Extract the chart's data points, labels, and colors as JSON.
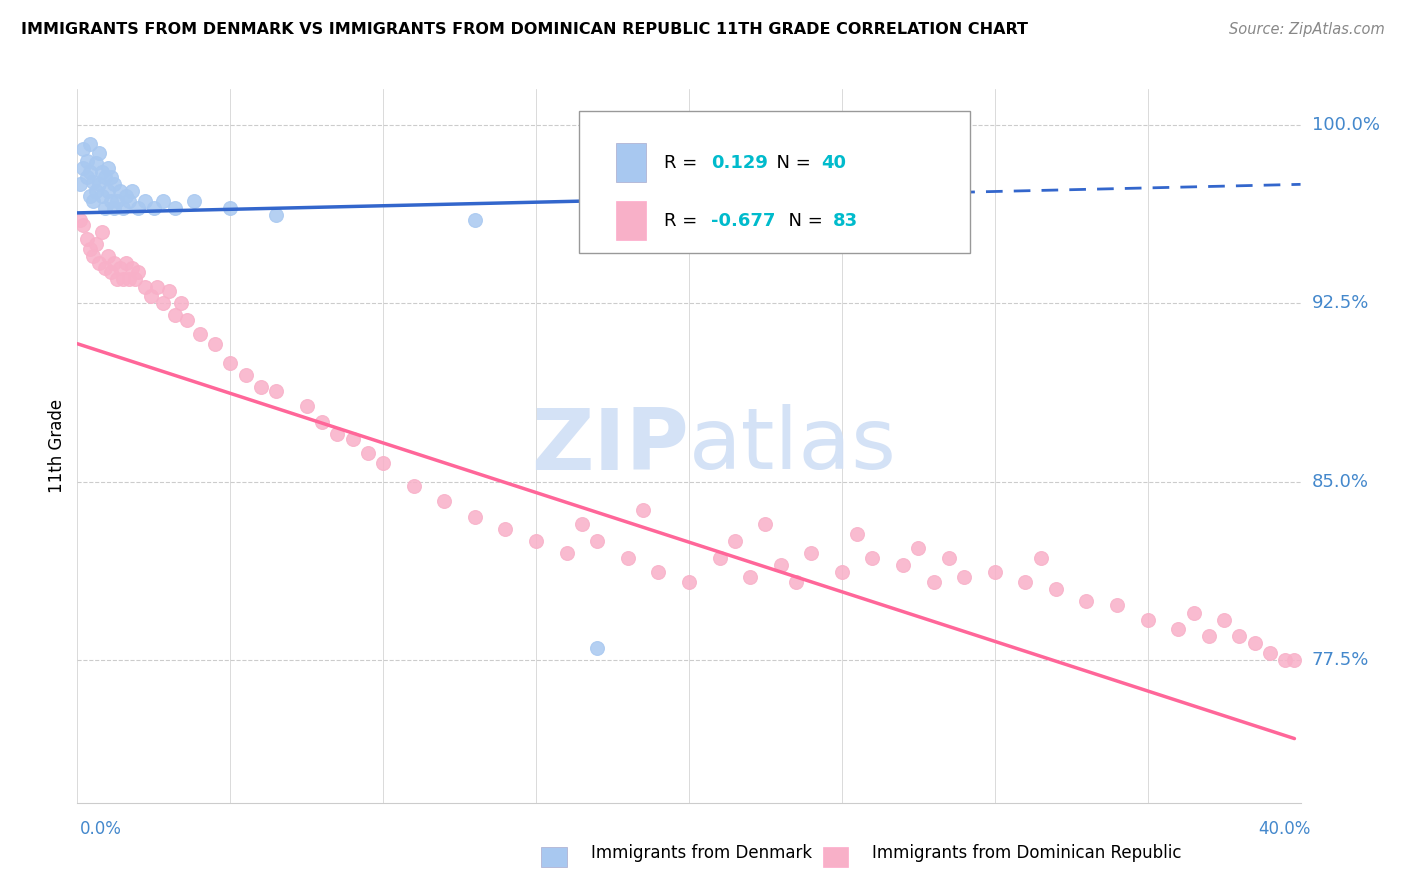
{
  "title_text": "IMMIGRANTS FROM DENMARK VS IMMIGRANTS FROM DOMINICAN REPUBLIC 11TH GRADE CORRELATION CHART",
  "source_text": "Source: ZipAtlas.com",
  "ylabel": "11th Grade",
  "xlim": [
    0.0,
    0.4
  ],
  "ylim": [
    0.715,
    1.015
  ],
  "y_ticks": [
    0.775,
    0.85,
    0.925,
    1.0
  ],
  "y_tick_labels": [
    "77.5%",
    "85.0%",
    "92.5%",
    "100.0%"
  ],
  "y_tick_color": "#4488cc",
  "x_tick_color": "#4488cc",
  "legend_r1_val": "0.129",
  "legend_n1_val": "40",
  "legend_r2_val": "-0.677",
  "legend_n2_val": "83",
  "denmark_color": "#a8c8f0",
  "dominican_color": "#f8b0c8",
  "trend_denmark_color": "#3366cc",
  "trend_dominican_color": "#ff6699",
  "watermark_color": "#d0dff5",
  "denmark_points_x": [
    0.001,
    0.002,
    0.002,
    0.003,
    0.003,
    0.004,
    0.004,
    0.004,
    0.005,
    0.005,
    0.006,
    0.006,
    0.007,
    0.007,
    0.008,
    0.008,
    0.009,
    0.009,
    0.01,
    0.01,
    0.011,
    0.011,
    0.012,
    0.012,
    0.013,
    0.014,
    0.015,
    0.016,
    0.017,
    0.018,
    0.02,
    0.022,
    0.025,
    0.028,
    0.032,
    0.038,
    0.05,
    0.065,
    0.13,
    0.17
  ],
  "denmark_points_y": [
    0.975,
    0.982,
    0.99,
    0.978,
    0.985,
    0.97,
    0.98,
    0.992,
    0.968,
    0.976,
    0.972,
    0.984,
    0.975,
    0.988,
    0.97,
    0.98,
    0.965,
    0.978,
    0.972,
    0.982,
    0.968,
    0.978,
    0.965,
    0.975,
    0.968,
    0.972,
    0.965,
    0.97,
    0.968,
    0.972,
    0.965,
    0.968,
    0.965,
    0.968,
    0.965,
    0.968,
    0.965,
    0.962,
    0.96,
    0.78
  ],
  "dominican_points_x": [
    0.001,
    0.002,
    0.003,
    0.004,
    0.005,
    0.006,
    0.007,
    0.008,
    0.009,
    0.01,
    0.011,
    0.012,
    0.013,
    0.014,
    0.015,
    0.016,
    0.017,
    0.018,
    0.019,
    0.02,
    0.022,
    0.024,
    0.026,
    0.028,
    0.03,
    0.032,
    0.034,
    0.036,
    0.04,
    0.045,
    0.05,
    0.055,
    0.06,
    0.065,
    0.075,
    0.08,
    0.085,
    0.09,
    0.095,
    0.1,
    0.11,
    0.12,
    0.13,
    0.14,
    0.15,
    0.16,
    0.165,
    0.17,
    0.18,
    0.185,
    0.19,
    0.2,
    0.21,
    0.215,
    0.22,
    0.225,
    0.23,
    0.235,
    0.24,
    0.25,
    0.255,
    0.26,
    0.27,
    0.275,
    0.28,
    0.285,
    0.29,
    0.3,
    0.31,
    0.315,
    0.32,
    0.33,
    0.34,
    0.35,
    0.36,
    0.365,
    0.37,
    0.375,
    0.38,
    0.385,
    0.39,
    0.395,
    0.398
  ],
  "dominican_points_y": [
    0.96,
    0.958,
    0.952,
    0.948,
    0.945,
    0.95,
    0.942,
    0.955,
    0.94,
    0.945,
    0.938,
    0.942,
    0.935,
    0.94,
    0.935,
    0.942,
    0.935,
    0.94,
    0.935,
    0.938,
    0.932,
    0.928,
    0.932,
    0.925,
    0.93,
    0.92,
    0.925,
    0.918,
    0.912,
    0.908,
    0.9,
    0.895,
    0.89,
    0.888,
    0.882,
    0.875,
    0.87,
    0.868,
    0.862,
    0.858,
    0.848,
    0.842,
    0.835,
    0.83,
    0.825,
    0.82,
    0.832,
    0.825,
    0.818,
    0.838,
    0.812,
    0.808,
    0.818,
    0.825,
    0.81,
    0.832,
    0.815,
    0.808,
    0.82,
    0.812,
    0.828,
    0.818,
    0.815,
    0.822,
    0.808,
    0.818,
    0.81,
    0.812,
    0.808,
    0.818,
    0.805,
    0.8,
    0.798,
    0.792,
    0.788,
    0.795,
    0.785,
    0.792,
    0.785,
    0.782,
    0.778,
    0.775,
    0.775
  ],
  "trend_dk_x0": 0.0,
  "trend_dk_x1": 0.4,
  "trend_dk_y0": 0.963,
  "trend_dk_y1": 0.975,
  "trend_dk_solid_x1": 0.17,
  "trend_dr_x0": 0.0,
  "trend_dr_x1": 0.398,
  "trend_dr_y0": 0.908,
  "trend_dr_y1": 0.742
}
